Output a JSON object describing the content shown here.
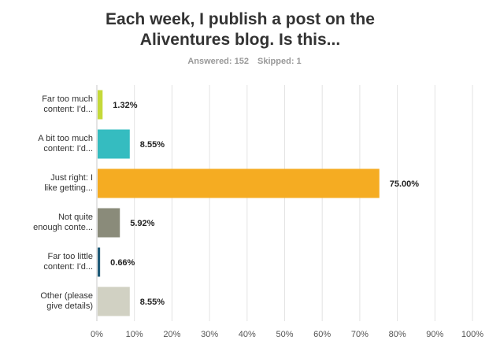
{
  "title_lines": [
    "Each week, I publish a post on the",
    "Aliventures blog. Is this..."
  ],
  "answered": "Answered: 152",
  "skipped": "Skipped: 1",
  "colors": {
    "grid": "#e3e3e3",
    "axis": "#c8c8c8"
  },
  "chart_data": {
    "type": "bar",
    "orientation": "horizontal",
    "categories": [
      [
        "Far too much",
        "content: I'd..."
      ],
      [
        "A bit too much",
        "content: I'd..."
      ],
      [
        "Just right: I",
        "like getting..."
      ],
      [
        "Not quite",
        "enough conte..."
      ],
      [
        "Far too little",
        "content: I'd..."
      ],
      [
        "Other (please",
        "give details)"
      ]
    ],
    "values": [
      1.32,
      8.55,
      75.0,
      5.92,
      0.66,
      8.55
    ],
    "value_labels": [
      "1.32%",
      "8.55%",
      "75.00%",
      "5.92%",
      "0.66%",
      "8.55%"
    ],
    "bar_colors": [
      "#c5d93a",
      "#35bcc0",
      "#f5ac22",
      "#8a8b7a",
      "#1f5a77",
      "#d1d1c3"
    ],
    "xlim": [
      0,
      100
    ],
    "xticks": [
      "0%",
      "10%",
      "20%",
      "30%",
      "40%",
      "50%",
      "60%",
      "70%",
      "80%",
      "90%",
      "100%"
    ],
    "grid": true
  }
}
